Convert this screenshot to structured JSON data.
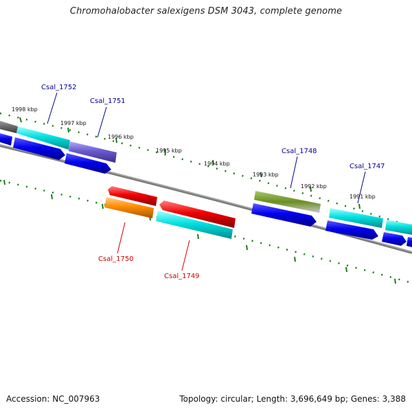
{
  "title": "Chromohalobacter salexigens DSM 3043, complete genome",
  "footer": {
    "accession": "Accession: NC_007963",
    "summary": "Topology: circular; Length: 3,696,649 bp; Genes: 3,388"
  },
  "ruler_ticks": [
    "1998 kbp",
    "1997 kbp",
    "1996 kbp",
    "1995 kbp",
    "1994 kbp",
    "1993 kbp",
    "1992 kbp",
    "1991 kbp"
  ],
  "gene_labels": [
    {
      "name": "Csal_1752",
      "color": "#00008b"
    },
    {
      "name": "Csal_1751",
      "color": "#00008b"
    },
    {
      "name": "Csal_1748",
      "color": "#00008b"
    },
    {
      "name": "Csal_1747",
      "color": "#00008b"
    },
    {
      "name": "Csal_1750",
      "color": "#cc0000"
    },
    {
      "name": "Csal_1749",
      "color": "#cc0000"
    }
  ],
  "colors": {
    "backbone": "#7a7a7a",
    "tick": "#1a7a1a",
    "cyan": "#00d8d8",
    "blue": "#0000ee",
    "purple": "#6a5acd",
    "red": "#ee0000",
    "orange": "#ff8c00",
    "olive": "#6b8e23",
    "gray": "#666666",
    "forward_label": "#00008b",
    "reverse_label": "#cc0000"
  }
}
